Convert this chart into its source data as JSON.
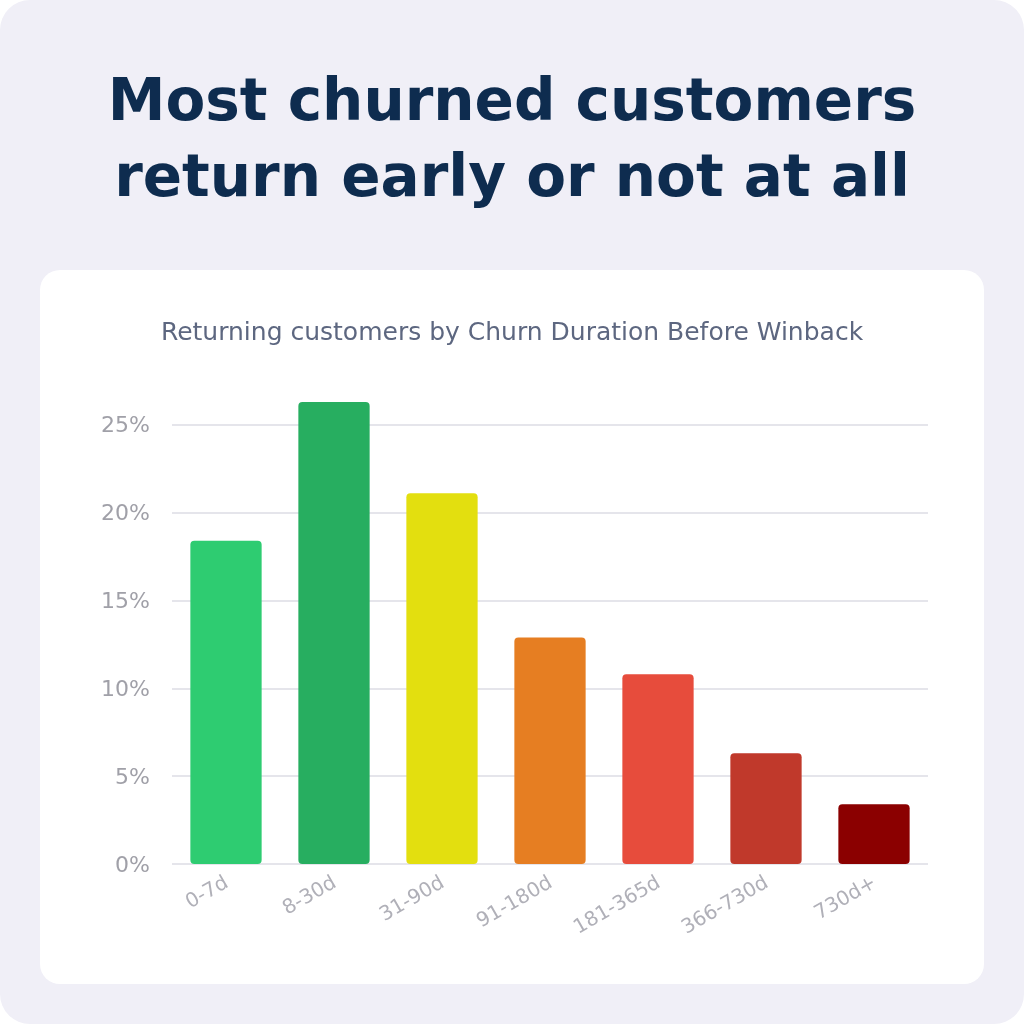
{
  "chart_data": {
    "type": "bar",
    "title": "Most churned customers return early or not at all",
    "subtitle": "Returning customers by Churn Duration Before Winback",
    "categories": [
      "0-7d",
      "8-30d",
      "31-90d",
      "91-180d",
      "181-365d",
      "366-730d",
      "730d+"
    ],
    "values": [
      18.4,
      26.3,
      21.1,
      12.9,
      10.8,
      6.3,
      3.4
    ],
    "ylim": [
      0,
      26.3
    ],
    "colors": [
      "#2ecc71",
      "#27ae60",
      "#e3df0f",
      "#e67e22",
      "#e74c3c",
      "#c0392b",
      "#8b0000"
    ],
    "yticks": [
      {
        "value": 0,
        "label": "0%"
      },
      {
        "value": 5,
        "label": "5%"
      },
      {
        "value": 10,
        "label": "10%"
      },
      {
        "value": 15,
        "label": "15%"
      },
      {
        "value": 20,
        "label": "20%"
      },
      {
        "value": 25,
        "label": "25%"
      }
    ],
    "grid": "y"
  }
}
